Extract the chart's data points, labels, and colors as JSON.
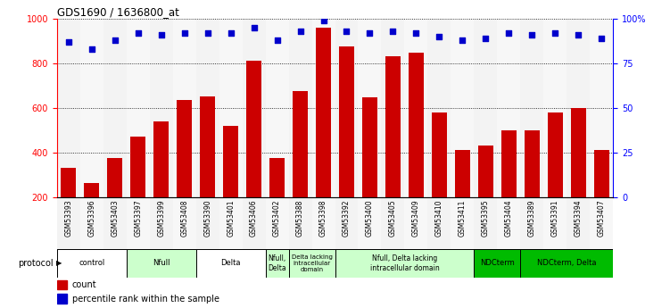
{
  "title": "GDS1690 / 1636800_at",
  "samples": [
    "GSM53393",
    "GSM53396",
    "GSM53403",
    "GSM53397",
    "GSM53399",
    "GSM53408",
    "GSM53390",
    "GSM53401",
    "GSM53406",
    "GSM53402",
    "GSM53388",
    "GSM53398",
    "GSM53392",
    "GSM53400",
    "GSM53405",
    "GSM53409",
    "GSM53410",
    "GSM53411",
    "GSM53395",
    "GSM53404",
    "GSM53389",
    "GSM53391",
    "GSM53394",
    "GSM53407"
  ],
  "counts": [
    330,
    265,
    375,
    470,
    540,
    635,
    650,
    520,
    810,
    375,
    675,
    960,
    875,
    645,
    830,
    845,
    580,
    410,
    430,
    500,
    500,
    580,
    600,
    410
  ],
  "percentiles": [
    87,
    83,
    88,
    92,
    91,
    92,
    92,
    92,
    95,
    88,
    93,
    99,
    93,
    92,
    93,
    92,
    90,
    88,
    89,
    92,
    91,
    92,
    91,
    89
  ],
  "bar_color": "#CC0000",
  "dot_color": "#0000CC",
  "ylim_left": [
    200,
    1000
  ],
  "ylim_right": [
    0,
    100
  ],
  "yticks_left": [
    200,
    400,
    600,
    800,
    1000
  ],
  "yticks_right": [
    0,
    25,
    50,
    75,
    100
  ],
  "yticklabels_right": [
    "0",
    "25",
    "50",
    "75",
    "100%"
  ],
  "groups": [
    {
      "label": "control",
      "start": 0,
      "end": 2,
      "color": "#FFFFFF"
    },
    {
      "label": "Nfull",
      "start": 3,
      "end": 5,
      "color": "#CCFFCC"
    },
    {
      "label": "Delta",
      "start": 6,
      "end": 8,
      "color": "#FFFFFF"
    },
    {
      "label": "Nfull,\nDelta",
      "start": 9,
      "end": 9,
      "color": "#CCFFCC"
    },
    {
      "label": "Delta lacking\nintracellular\ndomain",
      "start": 10,
      "end": 11,
      "color": "#CCFFCC"
    },
    {
      "label": "Nfull, Delta lacking\nintracellular domain",
      "start": 12,
      "end": 17,
      "color": "#CCFFCC"
    },
    {
      "label": "NDCterm",
      "start": 18,
      "end": 19,
      "color": "#00BB00"
    },
    {
      "label": "NDCterm, Delta",
      "start": 20,
      "end": 23,
      "color": "#00BB00"
    }
  ],
  "col_colors": [
    "#E8E8E8",
    "#F0F0F0",
    "#E8E8E8",
    "#F0F0F0",
    "#E8E8E8",
    "#F0F0F0",
    "#E8E8E8",
    "#F0F0F0",
    "#E8E8E8",
    "#F0F0F0",
    "#E8E8E8",
    "#F0F0F0",
    "#E8E8E8",
    "#F0F0F0",
    "#E8E8E8",
    "#F0F0F0",
    "#E8E8E8",
    "#F0F0F0",
    "#E8E8E8",
    "#F0F0F0",
    "#E8E8E8",
    "#F0F0F0",
    "#E8E8E8",
    "#F0F0F0"
  ]
}
